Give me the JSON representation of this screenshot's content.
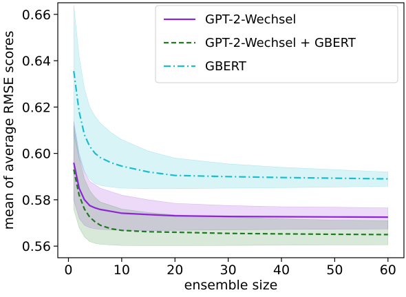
{
  "chart_data": {
    "type": "line",
    "title": "",
    "xlabel": "ensemble size",
    "ylabel": "mean of average RMSE scores",
    "xlim": [
      -2,
      63
    ],
    "ylim": [
      0.555,
      0.665
    ],
    "xticks": [
      0,
      10,
      20,
      30,
      40,
      50,
      60
    ],
    "yticks": [
      0.56,
      0.58,
      0.6,
      0.62,
      0.64,
      0.66
    ],
    "ytick_labels": [
      "0.56",
      "0.58",
      "0.60",
      "0.62",
      "0.64",
      "0.66"
    ],
    "grid": false,
    "legend_position": "top-right",
    "x": [
      1,
      2,
      3,
      4,
      5,
      6,
      8,
      10,
      15,
      20,
      30,
      40,
      50,
      60
    ],
    "series": [
      {
        "name": "GPT-2-Wechsel",
        "color": "#8e24d6",
        "linestyle": "solid",
        "values": [
          0.596,
          0.585,
          0.58,
          0.5775,
          0.5765,
          0.5758,
          0.575,
          0.5742,
          0.5736,
          0.5731,
          0.5728,
          0.5727,
          0.5726,
          0.5725
        ],
        "band_upper": [
          0.614,
          0.6,
          0.592,
          0.588,
          0.5865,
          0.585,
          0.5835,
          0.582,
          0.58,
          0.5785,
          0.5775,
          0.577,
          0.5768,
          0.5765
        ],
        "band_lower": [
          0.58,
          0.572,
          0.569,
          0.568,
          0.5675,
          0.5672,
          0.567,
          0.5668,
          0.5667,
          0.5668,
          0.567,
          0.5672,
          0.5673,
          0.5674
        ]
      },
      {
        "name": "GPT-2-Wechsel + GBERT",
        "color": "#1e7a1e",
        "linestyle": "dashed",
        "values": [
          0.593,
          0.582,
          0.576,
          0.5725,
          0.5705,
          0.569,
          0.5675,
          0.5668,
          0.5662,
          0.566,
          0.5655,
          0.5653,
          0.5651,
          0.565
        ],
        "band_upper": [
          0.612,
          0.598,
          0.589,
          0.584,
          0.581,
          0.579,
          0.5775,
          0.576,
          0.5745,
          0.5735,
          0.5725,
          0.5718,
          0.5712,
          0.571
        ],
        "band_lower": [
          0.576,
          0.568,
          0.564,
          0.562,
          0.5612,
          0.5608,
          0.5605,
          0.5603,
          0.5602,
          0.5602,
          0.5603,
          0.5604,
          0.5605,
          0.5606
        ]
      },
      {
        "name": "GBERT",
        "color": "#17becf",
        "linestyle": "dashdot",
        "values": [
          0.6355,
          0.618,
          0.608,
          0.603,
          0.6,
          0.5982,
          0.596,
          0.5945,
          0.592,
          0.5905,
          0.59,
          0.5896,
          0.5893,
          0.589
        ],
        "band_upper": [
          0.664,
          0.642,
          0.628,
          0.62,
          0.616,
          0.613,
          0.609,
          0.606,
          0.601,
          0.598,
          0.5955,
          0.594,
          0.593,
          0.592
        ],
        "band_lower": [
          0.608,
          0.598,
          0.592,
          0.589,
          0.587,
          0.5862,
          0.5855,
          0.585,
          0.5848,
          0.5848,
          0.585,
          0.5852,
          0.5855,
          0.5858
        ]
      }
    ]
  }
}
